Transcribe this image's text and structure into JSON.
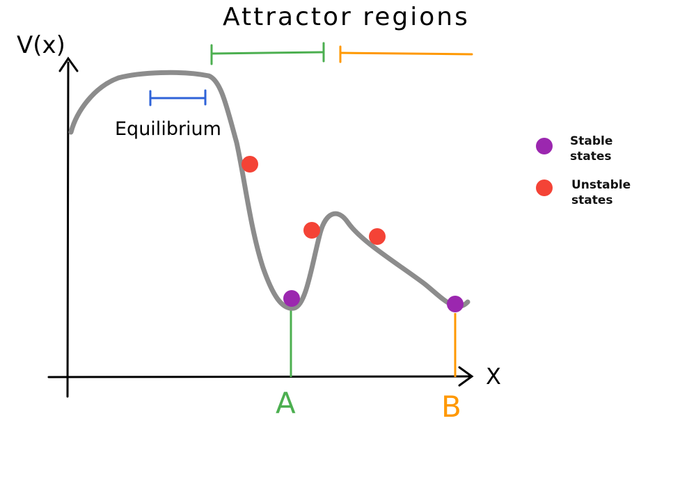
{
  "title": "Attractor regions",
  "axes": {
    "y_label": "V(x)",
    "x_label": "X"
  },
  "labels": {
    "equilibrium": "Equilibrium",
    "attractor_a": "A",
    "attractor_b": "B"
  },
  "legend": {
    "stable_line1": "Stable",
    "stable_line2": "states",
    "unstable_line1": "Unstable",
    "unstable_line2": "states"
  },
  "colors": {
    "curve": "#8c8c8c",
    "axis": "#000000",
    "stable": "#9b27af",
    "unstable": "#f44336",
    "region_a": "#4caf50",
    "region_b": "#ff9800",
    "equilibrium": "#2f63d8"
  }
}
